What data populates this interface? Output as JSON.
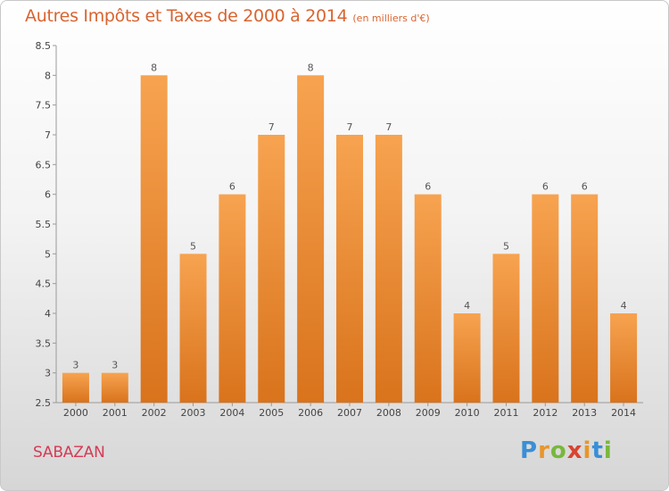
{
  "chart_data": {
    "type": "bar",
    "title": "Autres Impôts et Taxes de 2000 à 2014",
    "subtitle": "(en milliers d'€)",
    "categories": [
      "2000",
      "2001",
      "2002",
      "2003",
      "2004",
      "2005",
      "2006",
      "2007",
      "2008",
      "2009",
      "2010",
      "2011",
      "2012",
      "2013",
      "2014"
    ],
    "values": [
      3,
      3,
      8,
      5,
      6,
      7,
      8,
      7,
      7,
      6,
      4,
      5,
      6,
      6,
      4
    ],
    "ylim": [
      2.5,
      8.5
    ],
    "yticks": [
      "2.5",
      "3",
      "3.5",
      "4",
      "4.5",
      "5",
      "5.5",
      "6",
      "6.5",
      "7",
      "7.5",
      "8",
      "8.5"
    ],
    "grid": false,
    "bar_color": "#f08a2c"
  },
  "commune": "SABAZAN",
  "brand": "Proxiti"
}
